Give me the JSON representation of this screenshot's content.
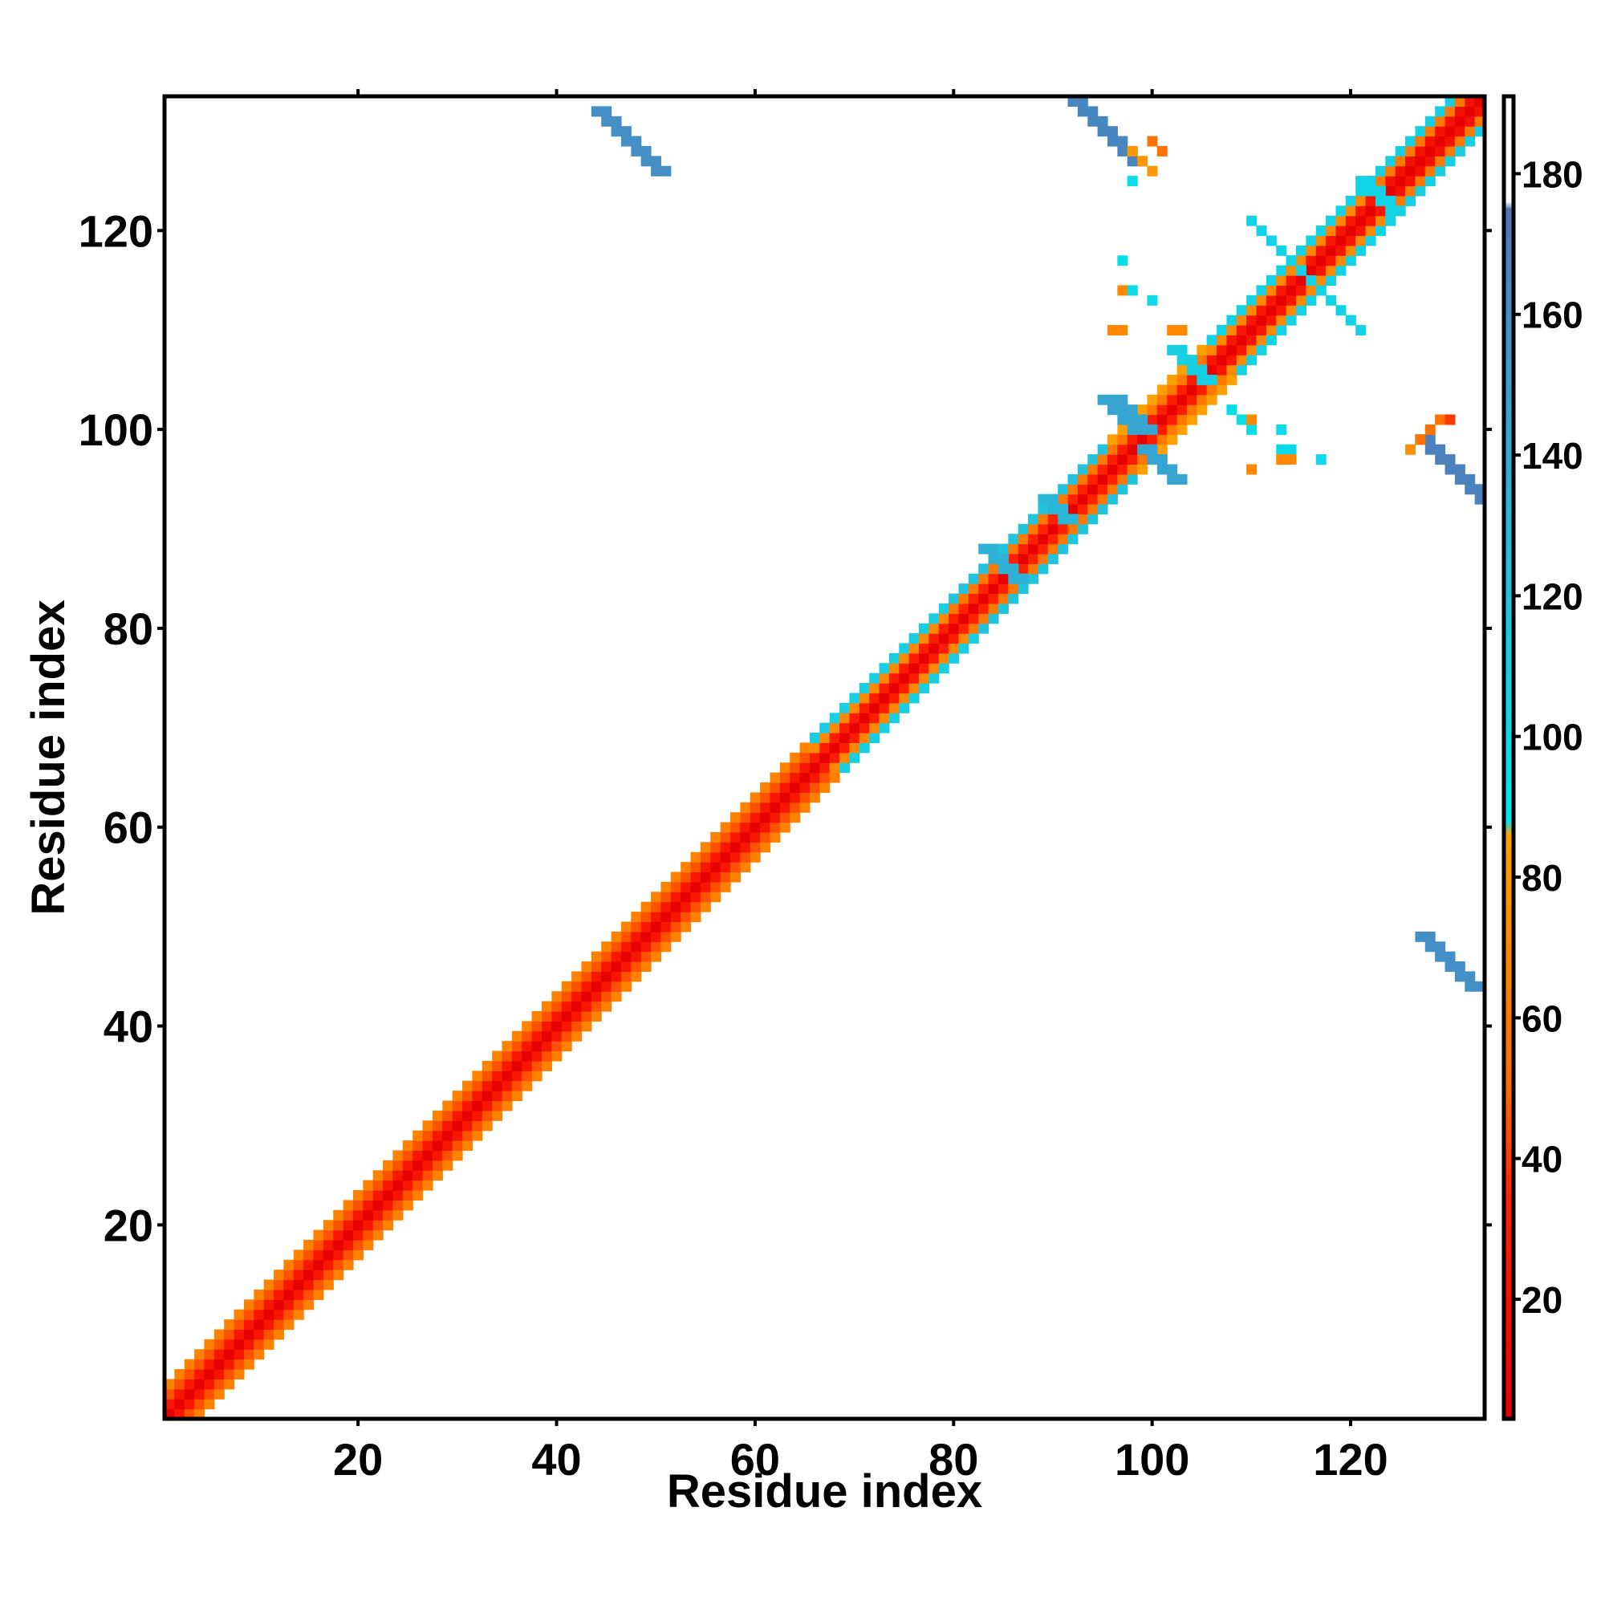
{
  "chart_data": {
    "type": "heatmap",
    "title": "",
    "xlabel": "Residue index",
    "ylabel": "Residue index",
    "xlim": [
      1,
      133
    ],
    "ylim": [
      1,
      133
    ],
    "x_ticks": [
      20,
      40,
      60,
      80,
      100,
      120
    ],
    "y_ticks": [
      20,
      40,
      60,
      80,
      100,
      120
    ],
    "grid": false,
    "legend": "colorbar-right",
    "colorbar": {
      "range": [
        3,
        191
      ],
      "ticks": [
        20,
        40,
        60,
        80,
        100,
        120,
        140,
        160,
        180
      ],
      "stops": [
        {
          "value": 3,
          "color": "#e60000"
        },
        {
          "value": 35,
          "color": "#ff2200"
        },
        {
          "value": 50,
          "color": "#ff6a00"
        },
        {
          "value": 70,
          "color": "#ff8800"
        },
        {
          "value": 86,
          "color": "#ffa000"
        },
        {
          "value": 88,
          "color": "#00e5ee"
        },
        {
          "value": 120,
          "color": "#22c4dd"
        },
        {
          "value": 150,
          "color": "#3a9fd0"
        },
        {
          "value": 175,
          "color": "#5276b5"
        },
        {
          "value": 176,
          "color": "#ffffff"
        },
        {
          "value": 191,
          "color": "#ffffff"
        }
      ]
    },
    "diagonal": {
      "range": [
        1,
        133
      ],
      "max_offset": 3,
      "segments": [
        {
          "from": 1,
          "to": 66,
          "offset_values": [
            0,
            25,
            45,
            65
          ]
        },
        {
          "from": 66,
          "to": 80,
          "offset_values": [
            0,
            30,
            70,
            110
          ]
        },
        {
          "from": 80,
          "to": 96,
          "offset_values": [
            0,
            35,
            60,
            120
          ]
        },
        {
          "from": 96,
          "to": 106,
          "offset_values": [
            0,
            30,
            60,
            85
          ]
        },
        {
          "from": 106,
          "to": 123,
          "offset_values": [
            0,
            25,
            70,
            105
          ]
        },
        {
          "from": 123,
          "to": 133,
          "offset_values": [
            0,
            20,
            60,
            110
          ]
        }
      ]
    },
    "off_diagonal_regions": [
      {
        "x_start": 44,
        "y_start": 132,
        "length": 7,
        "step_x": 1,
        "step_y": -1,
        "width": 2,
        "value": 160
      },
      {
        "x_start": 92,
        "y_start": 133,
        "length": 7,
        "step_x": 1,
        "step_y": -1,
        "width": 2,
        "value": 165
      },
      {
        "x_start": 127,
        "y_start": 99,
        "length": 7,
        "step_x": 1,
        "step_y": -1,
        "width": 2,
        "value": 168
      },
      {
        "x_start": 127,
        "y_start": 49,
        "length": 6,
        "step_x": 1,
        "step_y": -1,
        "width": 2,
        "value": 160
      },
      {
        "x_start": 95,
        "y_start": 103,
        "length": 4,
        "step_x": 1,
        "step_y": -1,
        "width": 3,
        "value": 145
      },
      {
        "x_start": 99,
        "y_start": 98,
        "length": 4,
        "step_x": 1,
        "step_y": -1,
        "width": 2,
        "value": 145
      },
      {
        "x_start": 102,
        "y_start": 108,
        "length": 4,
        "step_x": 1,
        "step_y": -1,
        "width": 2,
        "value": 110
      },
      {
        "x_start": 108,
        "y_start": 102,
        "length": 3,
        "step_x": 1,
        "step_y": -1,
        "width": 1,
        "value": 95
      },
      {
        "x_start": 110,
        "y_start": 121,
        "length": 12,
        "step_x": 1,
        "step_y": -1,
        "width": 1,
        "value": 105
      },
      {
        "x_start": 121,
        "y_start": 125,
        "length": 4,
        "step_x": 1,
        "step_y": -1,
        "width": 2,
        "value": 105
      },
      {
        "x_start": 83,
        "y_start": 88,
        "length": 4,
        "step_x": 1,
        "step_y": -1,
        "width": 2,
        "value": 135
      },
      {
        "x_start": 89,
        "y_start": 93,
        "length": 3,
        "step_x": 1,
        "step_y": -1,
        "width": 2,
        "value": 130
      },
      {
        "x_start": 97,
        "y_start": 117,
        "length": 1,
        "step_x": 1,
        "step_y": 0,
        "width": 1,
        "value": 95
      },
      {
        "x_start": 97,
        "y_start": 114,
        "length": 1,
        "step_x": 1,
        "step_y": 0,
        "width": 1,
        "value": 70
      },
      {
        "x_start": 98,
        "y_start": 114,
        "length": 1,
        "step_x": 1,
        "step_y": 0,
        "width": 1,
        "value": 100
      },
      {
        "x_start": 100,
        "y_start": 113,
        "length": 1,
        "step_x": 1,
        "step_y": 0,
        "width": 1,
        "value": 100
      },
      {
        "x_start": 96,
        "y_start": 110,
        "length": 2,
        "step_x": 1,
        "step_y": 0,
        "width": 1,
        "value": 70
      },
      {
        "x_start": 102,
        "y_start": 110,
        "length": 2,
        "step_x": 1,
        "step_y": 0,
        "width": 1,
        "value": 70
      },
      {
        "x_start": 98,
        "y_start": 128,
        "length": 3,
        "step_x": 1,
        "step_y": -1,
        "width": 1,
        "value": 80
      },
      {
        "x_start": 100,
        "y_start": 129,
        "length": 2,
        "step_x": 1,
        "step_y": -1,
        "width": 1,
        "value": 55
      },
      {
        "x_start": 98,
        "y_start": 125,
        "length": 1,
        "step_x": 1,
        "step_y": 0,
        "width": 1,
        "value": 95
      },
      {
        "x_start": 110,
        "y_start": 101,
        "length": 1,
        "step_x": 1,
        "step_y": 0,
        "width": 1,
        "value": 70
      },
      {
        "x_start": 113,
        "y_start": 100,
        "length": 1,
        "step_x": 1,
        "step_y": 0,
        "width": 1,
        "value": 100
      },
      {
        "x_start": 113,
        "y_start": 98,
        "length": 2,
        "step_x": 1,
        "step_y": 0,
        "width": 1,
        "value": 100
      },
      {
        "x_start": 113,
        "y_start": 97,
        "length": 2,
        "step_x": 1,
        "step_y": 0,
        "width": 1,
        "value": 70
      },
      {
        "x_start": 110,
        "y_start": 96,
        "length": 1,
        "step_x": 1,
        "step_y": 0,
        "width": 1,
        "value": 70
      },
      {
        "x_start": 117,
        "y_start": 97,
        "length": 1,
        "step_x": 1,
        "step_y": 0,
        "width": 1,
        "value": 100
      },
      {
        "x_start": 126,
        "y_start": 98,
        "length": 1,
        "step_x": 1,
        "step_y": 0,
        "width": 1,
        "value": 75
      },
      {
        "x_start": 127,
        "y_start": 99,
        "length": 3,
        "step_x": 1,
        "step_y": 1,
        "width": 1,
        "value": 55
      },
      {
        "x_start": 130,
        "y_start": 101,
        "length": 1,
        "step_x": 1,
        "step_y": 0,
        "width": 1,
        "value": 40
      }
    ]
  }
}
